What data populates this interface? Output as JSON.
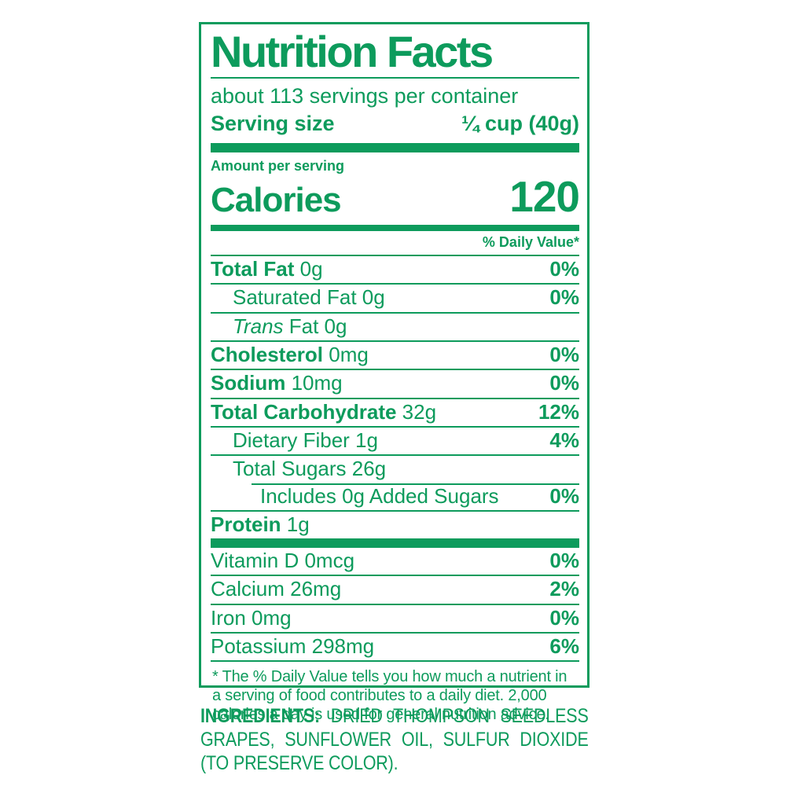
{
  "colors": {
    "green": "#0d9b5c",
    "background": "#ffffff"
  },
  "label": {
    "title": "Nutrition Facts",
    "servings_per_container": "about 113 servings per container",
    "serving_size": {
      "label": "Serving size",
      "value": "¼ cup (40g)"
    },
    "amount_per_serving": "Amount per serving",
    "calories": {
      "label": "Calories",
      "value": "120"
    },
    "daily_value_header": "% Daily Value*",
    "nutrient_rows": [
      {
        "name": "Total Fat",
        "amount": "0g",
        "dv": "0%",
        "bold": true,
        "indent": 0
      },
      {
        "name": "Saturated Fat",
        "amount": "0g",
        "dv": "0%",
        "bold": false,
        "indent": 1
      },
      {
        "italic": "Trans",
        "name": "Fat",
        "amount": "0g",
        "dv": "",
        "bold": false,
        "indent": 1
      },
      {
        "name": "Cholesterol",
        "amount": "0mg",
        "dv": "0%",
        "bold": true,
        "indent": 0
      },
      {
        "name": "Sodium",
        "amount": "10mg",
        "dv": "0%",
        "bold": true,
        "indent": 0
      },
      {
        "name": "Total Carbohydrate",
        "amount": "32g",
        "dv": "12%",
        "bold": true,
        "indent": 0
      },
      {
        "name": "Dietary Fiber",
        "amount": "1g",
        "dv": "4%",
        "bold": false,
        "indent": 1
      },
      {
        "name": "Total Sugars",
        "amount": "26g",
        "dv": "",
        "bold": false,
        "indent": 1
      },
      {
        "name": "Includes 0g Added Sugars",
        "amount": "",
        "dv": "0%",
        "bold": false,
        "indent": 2,
        "partial_rule": true
      },
      {
        "name": "Protein",
        "amount": "1g",
        "dv": "",
        "bold": true,
        "indent": 0
      }
    ],
    "vitamin_rows": [
      {
        "name": "Vitamin D",
        "amount": "0mcg",
        "dv": "0%"
      },
      {
        "name": "Calcium",
        "amount": "26mg",
        "dv": "2%"
      },
      {
        "name": "Iron",
        "amount": "0mg",
        "dv": "0%"
      },
      {
        "name": "Potassium",
        "amount": "298mg",
        "dv": "6%"
      }
    ],
    "footnote": "* The % Daily Value tells you how much a nutrient in a serving of food contributes to a daily diet. 2,000 calories a day is used for general nutrition advice."
  },
  "ingredients": {
    "label": "INGREDIENTS:",
    "text": "DRIED THOMPSON SEEDLESS GRAPES, SUNFLOWER OIL, SULFUR DIOXIDE (TO PRESERVE COLOR)."
  }
}
